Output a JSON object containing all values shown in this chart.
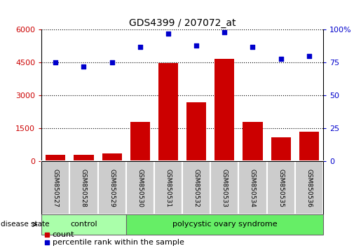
{
  "title": "GDS4399 / 207072_at",
  "samples": [
    "GSM850527",
    "GSM850528",
    "GSM850529",
    "GSM850530",
    "GSM850531",
    "GSM850532",
    "GSM850533",
    "GSM850534",
    "GSM850535",
    "GSM850536"
  ],
  "counts": [
    300,
    285,
    340,
    1800,
    4480,
    2700,
    4680,
    1800,
    1100,
    1350
  ],
  "percentiles": [
    75,
    72,
    75,
    87,
    97,
    88,
    98,
    87,
    78,
    80
  ],
  "bar_color": "#cc0000",
  "scatter_color": "#0000cc",
  "left_ylim": [
    0,
    6000
  ],
  "left_yticks": [
    0,
    1500,
    3000,
    4500,
    6000
  ],
  "right_ylim": [
    0,
    100
  ],
  "right_yticks": [
    0,
    25,
    50,
    75,
    100
  ],
  "right_yticklabels": [
    "0",
    "25",
    "50",
    "75",
    "100%"
  ],
  "control_label": "control",
  "pcos_label": "polycystic ovary syndrome",
  "disease_state_label": "disease state",
  "control_color": "#aaffaa",
  "pcos_color": "#66ee66",
  "label_box_color": "#cccccc",
  "legend_count_label": "count",
  "legend_pct_label": "percentile rank within the sample"
}
